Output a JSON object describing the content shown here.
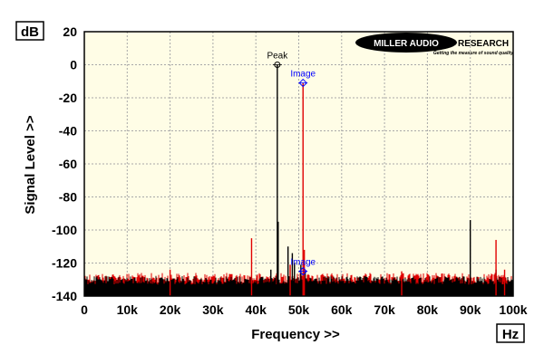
{
  "colors": {
    "plot_bg": "#fffde6",
    "grid": "#a8a8a8",
    "series_black": "#000000",
    "series_red": "#e00000",
    "annotation_peak": "#000000",
    "annotation_image": "#0000ff",
    "logo_bg": "#000000",
    "logo_text": "#ffffff"
  },
  "logo": {
    "name_part1": "MILLER AUDIO",
    "name_part2": "RESEARCH",
    "tagline": "Getting the measure of sound quality"
  },
  "chart_data": {
    "type": "line",
    "title": "",
    "xlabel": "Frequency >>",
    "ylabel": "Signal Level >>",
    "x_unit": "Hz",
    "y_unit": "dB",
    "xlim": [
      0,
      100000
    ],
    "ylim": [
      -140,
      20
    ],
    "grid": true,
    "x_ticks": [
      0,
      10000,
      20000,
      30000,
      40000,
      50000,
      60000,
      70000,
      80000,
      90000,
      100000
    ],
    "x_tick_labels": [
      "0",
      "10k",
      "20k",
      "30k",
      "40k",
      "50k",
      "60k",
      "70k",
      "80k",
      "90k",
      "100k"
    ],
    "y_ticks": [
      20,
      0,
      -20,
      -40,
      -60,
      -80,
      -100,
      -120,
      -140
    ],
    "y_tick_labels": [
      "20",
      "0",
      "-20",
      "-40",
      "-60",
      "-80",
      "-100",
      "-120",
      "-140"
    ],
    "noise_floor_db": -128,
    "series": [
      {
        "color_key": "series_black",
        "peaks": [
          {
            "x": 45000,
            "y": 0
          },
          {
            "x": 45200,
            "y": -95
          },
          {
            "x": 47500,
            "y": -110
          },
          {
            "x": 48500,
            "y": -114
          },
          {
            "x": 49000,
            "y": -120
          },
          {
            "x": 50500,
            "y": -121
          },
          {
            "x": 51500,
            "y": -125
          },
          {
            "x": 43500,
            "y": -124
          },
          {
            "x": 90000,
            "y": -94
          },
          {
            "x": 96000,
            "y": -124
          }
        ]
      },
      {
        "color_key": "series_red",
        "peaks": [
          {
            "x": 39000,
            "y": -105
          },
          {
            "x": 51000,
            "y": -11
          },
          {
            "x": 51300,
            "y": -112
          },
          {
            "x": 48000,
            "y": -121
          },
          {
            "x": 96000,
            "y": -106
          },
          {
            "x": 98000,
            "y": -124
          },
          {
            "x": 20000,
            "y": -124
          },
          {
            "x": 74000,
            "y": -125
          }
        ]
      }
    ],
    "annotations": [
      {
        "text": "Peak",
        "x": 45000,
        "y": 0,
        "color_key": "annotation_peak",
        "marker": "circle"
      },
      {
        "text": "Image",
        "x": 51000,
        "y": -11,
        "color_key": "annotation_image",
        "marker": "diamond"
      },
      {
        "text": "Image",
        "x": 51000,
        "y": -125,
        "color_key": "annotation_image",
        "marker": "diamond"
      }
    ]
  }
}
